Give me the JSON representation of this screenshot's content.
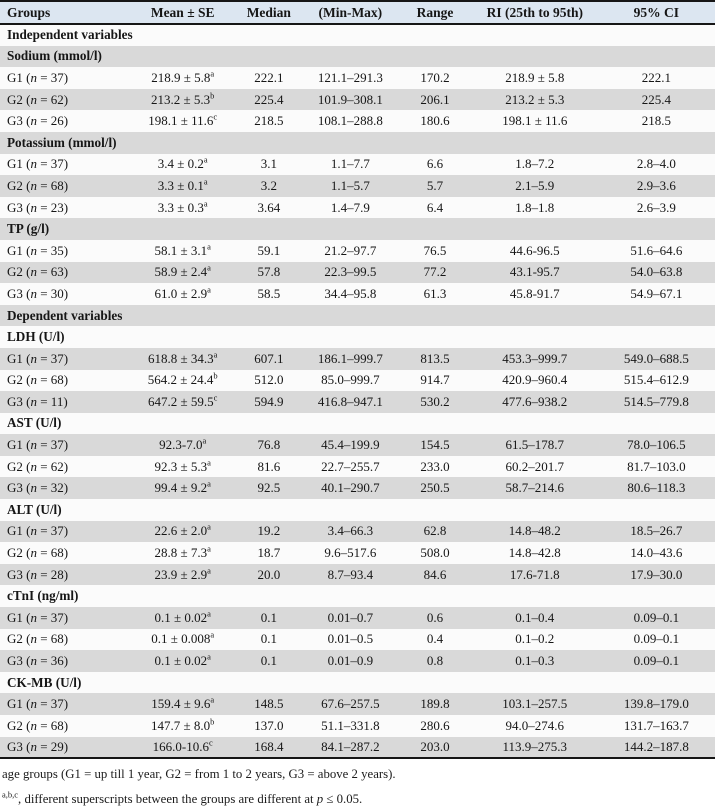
{
  "colors": {
    "header_background": "#dce6f1",
    "stripe_gray": "#d9d9d9",
    "stripe_light": "#fbfbfb",
    "rule_black": "#161616"
  },
  "header": {
    "columns": [
      "Groups",
      "Mean ± SE",
      "Median",
      "(Min-Max)",
      "Range",
      "RI (25th to 95th)",
      "95% CI"
    ]
  },
  "table": {
    "rows": [
      {
        "kind": "section",
        "label": "Independent variables"
      },
      {
        "kind": "section",
        "label": "Sodium (mmol/l)"
      },
      {
        "kind": "data",
        "group_pre": "G1 (",
        "n_label": "n",
        "group_post": " = 37)",
        "mean": "218.9 ± 5.8",
        "sup": "a",
        "median": "222.1",
        "minmax": "121.1–291.3",
        "range": "170.2",
        "ri": "218.9 ± 5.8",
        "ci": "222.1"
      },
      {
        "kind": "data",
        "group_pre": "G2 (",
        "n_label": "n",
        "group_post": " = 62)",
        "mean": "213.2 ± 5.3",
        "sup": "b",
        "median": "225.4",
        "minmax": "101.9–308.1",
        "range": "206.1",
        "ri": "213.2 ± 5.3",
        "ci": "225.4"
      },
      {
        "kind": "data",
        "group_pre": "G3 (",
        "n_label": "n",
        "group_post": " = 26)",
        "mean": "198.1 ± 11.6",
        "sup": "c",
        "median": "218.5",
        "minmax": "108.1–288.8",
        "range": "180.6",
        "ri": "198.1 ± 11.6",
        "ci": "218.5"
      },
      {
        "kind": "section",
        "label": "Potassium (mmol/l)"
      },
      {
        "kind": "data",
        "group_pre": "G1 (",
        "n_label": "n",
        "group_post": " = 37)",
        "mean": "3.4 ± 0.2",
        "sup": "a",
        "median": "3.1",
        "minmax": "1.1–7.7",
        "range": "6.6",
        "ri": "1.8–7.2",
        "ci": "2.8–4.0"
      },
      {
        "kind": "data",
        "group_pre": "G2 (",
        "n_label": "n",
        "group_post": " = 68)",
        "mean": "3.3 ± 0.1",
        "sup": "a",
        "median": "3.2",
        "minmax": "1.1–5.7",
        "range": "5.7",
        "ri": "2.1–5.9",
        "ci": "2.9–3.6"
      },
      {
        "kind": "data",
        "group_pre": "G3 (",
        "n_label": "n",
        "group_post": " = 23)",
        "mean": "3.3 ± 0.3",
        "sup": "a",
        "median": "3.64",
        "minmax": "1.4–7.9",
        "range": "6.4",
        "ri": "1.8–1.8",
        "ci": "2.6–3.9"
      },
      {
        "kind": "section",
        "label": "TP (g/l)"
      },
      {
        "kind": "data",
        "group_pre": "G1 (",
        "n_label": "n",
        "group_post": " = 35)",
        "mean": "58.1 ± 3.1",
        "sup": "a",
        "median": "59.1",
        "minmax": "21.2–97.7",
        "range": "76.5",
        "ri": "44.6-96.5",
        "ci": "51.6–64.6"
      },
      {
        "kind": "data",
        "group_pre": "G2 (",
        "n_label": "n",
        "group_post": " = 63)",
        "mean": "58.9 ± 2.4",
        "sup": "a",
        "median": "57.8",
        "minmax": "22.3–99.5",
        "range": "77.2",
        "ri": "43.1-95.7",
        "ci": "54.0–63.8"
      },
      {
        "kind": "data",
        "group_pre": "G3 (",
        "n_label": "n",
        "group_post": " = 30)",
        "mean": "61.0 ± 2.9",
        "sup": "a",
        "median": "58.5",
        "minmax": "34.4–95.8",
        "range": "61.3",
        "ri": "45.8-91.7",
        "ci": "54.9–67.1"
      },
      {
        "kind": "section",
        "label": "Dependent variables"
      },
      {
        "kind": "section",
        "label": "LDH (U/l)"
      },
      {
        "kind": "data",
        "group_pre": "G1 (",
        "n_label": "n",
        "group_post": " = 37)",
        "mean": "618.8 ± 34.3",
        "sup": "a",
        "median": "607.1",
        "minmax": "186.1–999.7",
        "range": "813.5",
        "ri": "453.3–999.7",
        "ci": "549.0–688.5"
      },
      {
        "kind": "data",
        "group_pre": "G2 (",
        "n_label": "n",
        "group_post": " = 68)",
        "mean": "564.2 ± 24.4",
        "sup": "b",
        "median": "512.0",
        "minmax": "85.0–999.7",
        "range": "914.7",
        "ri": "420.9–960.4",
        "ci": "515.4–612.9"
      },
      {
        "kind": "data",
        "group_pre": "G3 (",
        "n_label": "n",
        "group_post": " = 11)",
        "mean": "647.2 ± 59.5",
        "sup": "c",
        "median": "594.9",
        "minmax": "416.8–947.1",
        "range": "530.2",
        "ri": "477.6–938.2",
        "ci": "514.5–779.8"
      },
      {
        "kind": "section",
        "label": "AST (U/l)"
      },
      {
        "kind": "data",
        "group_pre": "G1 (",
        "n_label": "n",
        "group_post": " = 37)",
        "mean": "92.3-7.0",
        "sup": "a",
        "median": "76.8",
        "minmax": "45.4–199.9",
        "range": "154.5",
        "ri": "61.5–178.7",
        "ci": "78.0–106.5"
      },
      {
        "kind": "data",
        "group_pre": "G2 (",
        "n_label": "n",
        "group_post": " = 62)",
        "mean": "92.3 ± 5.3",
        "sup": "a",
        "median": "81.6",
        "minmax": "22.7–255.7",
        "range": "233.0",
        "ri": "60.2–201.7",
        "ci": "81.7–103.0"
      },
      {
        "kind": "data",
        "group_pre": "G3 (",
        "n_label": "n",
        "group_post": " = 32)",
        "mean": "99.4 ± 9.2",
        "sup": "a",
        "median": "92.5",
        "minmax": "40.1–290.7",
        "range": "250.5",
        "ri": "58.7–214.6",
        "ci": "80.6–118.3"
      },
      {
        "kind": "section",
        "label": "ALT (U/l)"
      },
      {
        "kind": "data",
        "group_pre": "G1 (",
        "n_label": "n",
        "group_post": " = 37)",
        "mean": "22.6 ± 2.0",
        "sup": "a",
        "median": "19.2",
        "minmax": "3.4–66.3",
        "range": "62.8",
        "ri": "14.8–48.2",
        "ci": "18.5–26.7"
      },
      {
        "kind": "data",
        "group_pre": "G2 (",
        "n_label": "n",
        "group_post": " = 68)",
        "mean": "28.8 ± 7.3",
        "sup": "a",
        "median": "18.7",
        "minmax": "9.6–517.6",
        "range": "508.0",
        "ri": "14.8–42.8",
        "ci": "14.0–43.6"
      },
      {
        "kind": "data",
        "group_pre": "G3 (",
        "n_label": "n",
        "group_post": " = 28)",
        "mean": "23.9 ± 2.9",
        "sup": "a",
        "median": "20.0",
        "minmax": "8.7–93.4",
        "range": "84.6",
        "ri": "17.6-71.8",
        "ci": "17.9–30.0"
      },
      {
        "kind": "section",
        "label": "cTnI (ng/ml)"
      },
      {
        "kind": "data",
        "group_pre": "G1 (",
        "n_label": "n",
        "group_post": " = 37)",
        "mean": "0.1 ± 0.02",
        "sup": "a",
        "median": "0.1",
        "minmax": "0.01–0.7",
        "range": "0.6",
        "ri": "0.1–0.4",
        "ci": "0.09–0.1"
      },
      {
        "kind": "data",
        "group_pre": "G2 (",
        "n_label": "n",
        "group_post": " = 68)",
        "mean": "0.1 ± 0.008",
        "sup": "a",
        "median": "0.1",
        "minmax": "0.01–0.5",
        "range": "0.4",
        "ri": "0.1–0.2",
        "ci": "0.09–0.1"
      },
      {
        "kind": "data",
        "group_pre": "G3 (",
        "n_label": "n",
        "group_post": " = 36)",
        "mean": "0.1 ± 0.02",
        "sup": "a",
        "median": "0.1",
        "minmax": "0.01–0.9",
        "range": "0.8",
        "ri": "0.1–0.3",
        "ci": "0.09–0.1"
      },
      {
        "kind": "section",
        "label": "CK-MB (U/l)"
      },
      {
        "kind": "data",
        "group_pre": "G1 (",
        "n_label": "n",
        "group_post": " = 37)",
        "mean": "159.4 ± 9.6",
        "sup": "a",
        "median": "148.5",
        "minmax": "67.6–257.5",
        "range": "189.8",
        "ri": "103.1–257.5",
        "ci": "139.8–179.0"
      },
      {
        "kind": "data",
        "group_pre": "G2 (",
        "n_label": "n",
        "group_post": " = 68)",
        "mean": "147.7 ± 8.0",
        "sup": "b",
        "median": "137.0",
        "minmax": "51.1–331.8",
        "range": "280.6",
        "ri": "94.0–274.6",
        "ci": "131.7–163.7"
      },
      {
        "kind": "data",
        "group_pre": "G3 (",
        "n_label": "n",
        "group_post": " = 29)",
        "mean": "166.0-10.6",
        "sup": "c",
        "median": "168.4",
        "minmax": "84.1–287.2",
        "range": "203.0",
        "ri": "113.9–275.3",
        "ci": "144.2–187.8"
      }
    ]
  },
  "footnotes": {
    "age_groups": "age groups (G1 = up till 1 year, G2 = from 1 to 2 years, G3 = above 2 years).",
    "superscript_prefix": "a,b,c",
    "superscript_text": ", different superscripts between the groups are different at ",
    "p_symbol": "p",
    "p_value": " ≤ 0.05."
  }
}
